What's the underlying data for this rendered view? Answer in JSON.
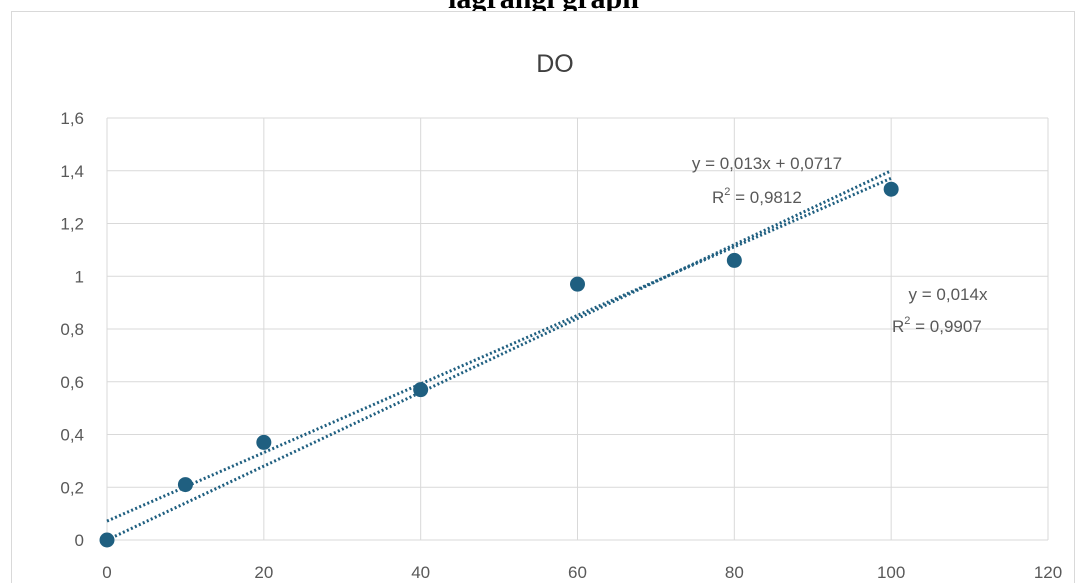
{
  "page": {
    "top_cut_text": "lagrangi graph"
  },
  "chart_data": {
    "type": "scatter",
    "title": "DO",
    "xlabel": "",
    "ylabel": "",
    "xlim": [
      0,
      120
    ],
    "ylim": [
      0,
      1.6
    ],
    "x_ticks": [
      0,
      20,
      40,
      60,
      80,
      100,
      120
    ],
    "y_ticks": [
      0,
      0.2,
      0.4,
      0.6,
      0.8,
      1,
      1.2,
      1.4,
      1.6
    ],
    "x_tick_labels": [
      "0",
      "20",
      "40",
      "60",
      "80",
      "100",
      "120"
    ],
    "y_tick_labels": [
      "0",
      "0,2",
      "0,4",
      "0,6",
      "0,8",
      "1",
      "1,2",
      "1,4",
      "1,6"
    ],
    "grid": true,
    "legend": "none",
    "series": [
      {
        "x": [
          0,
          10,
          20,
          40,
          60,
          80,
          100
        ],
        "y": [
          0.0,
          0.21,
          0.37,
          0.57,
          0.97,
          1.06,
          1.33
        ],
        "color": "#1f5f80"
      }
    ],
    "trendlines": [
      {
        "kind": "linear",
        "slope": 0.013,
        "intercept": 0.0717,
        "x_range": [
          0,
          100
        ],
        "color": "#1f5f80",
        "equation": "y = 0,013x + 0,0717",
        "r2_label": "R",
        "r2_value": " = 0,9812"
      },
      {
        "kind": "linear-through-origin",
        "slope": 0.014,
        "intercept": 0,
        "x_range": [
          0,
          100
        ],
        "color": "#1f5f80",
        "equation": "y = 0,014x",
        "r2_label": "R",
        "r2_value": " = 0,9907"
      }
    ],
    "colors": {
      "grid": "#d9d9d9",
      "tick_text": "#595959",
      "title_text": "#404040"
    }
  }
}
